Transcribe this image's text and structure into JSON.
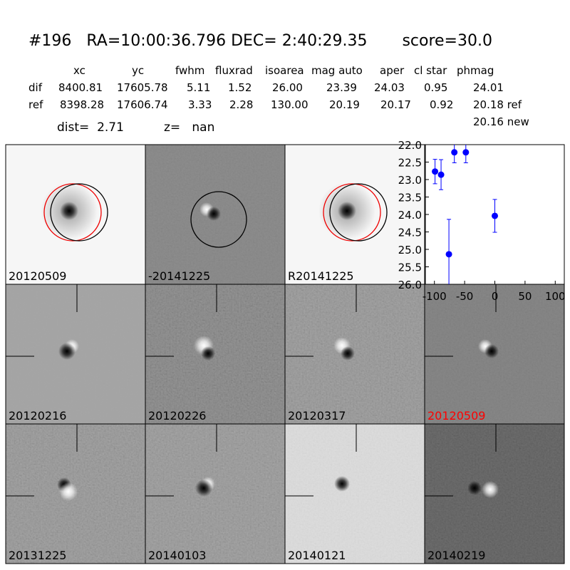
{
  "header": {
    "title": "#196   RA=10:00:36.796 DEC= 2:40:29.35       score=30.0"
  },
  "table": {
    "columns": [
      "xc",
      "yc",
      "fwhm",
      "fluxrad",
      "isoarea",
      "mag auto",
      "aper",
      "cl star",
      "phmag"
    ],
    "rows": [
      [
        "dif",
        "8400.81",
        "17605.78",
        "5.11",
        "1.52",
        "26.00",
        "23.39",
        "24.03",
        "0.95",
        "24.01"
      ],
      [
        "ref",
        "8398.28",
        "17606.74",
        "3.33",
        "2.28",
        "130.00",
        "20.19",
        "20.17",
        "0.92",
        "20.18 ref"
      ]
    ],
    "extra": "20.16 new"
  },
  "dist": "dist=  2.71",
  "z": "z=   nan",
  "panels": [
    {
      "label": "20120509"
    },
    {
      "label": "-20141225"
    },
    {
      "label": "R20141225"
    },
    {
      "label": "20120216"
    },
    {
      "label": "20120226"
    },
    {
      "label": "20120317"
    },
    {
      "label": "20120509",
      "color": "#ff0000"
    },
    {
      "label": "20131225"
    },
    {
      "label": "20140103"
    },
    {
      "label": "20140121"
    },
    {
      "label": "20140219"
    }
  ],
  "chart_data": {
    "type": "errorbar",
    "color": "#0000ff",
    "x": [
      -99,
      -89,
      -76,
      -67,
      -48,
      0
    ],
    "values": [
      22.77,
      22.86,
      25.14,
      22.22,
      22.22,
      24.04
    ],
    "errors": [
      0.35,
      0.43,
      1.0,
      0.3,
      0.3,
      0.47
    ],
    "xlim": [
      -115,
      115
    ],
    "ylim": [
      26,
      22
    ],
    "xticks": [
      -100,
      -50,
      0,
      50,
      100
    ],
    "yticks": [
      {
        "value": 22,
        "label": "22.0"
      },
      {
        "value": 22.5,
        "label": "22.5"
      },
      {
        "value": 23,
        "label": "23.0"
      },
      {
        "value": 23.5,
        "label": "23.5"
      },
      {
        "value": 24,
        "label": "24.0"
      },
      {
        "value": 24.5,
        "label": "24.5"
      },
      {
        "value": 25,
        "label": "25.0"
      },
      {
        "value": 25.5,
        "label": "25.5"
      },
      {
        "value": 26,
        "label": "26.0"
      }
    ]
  }
}
